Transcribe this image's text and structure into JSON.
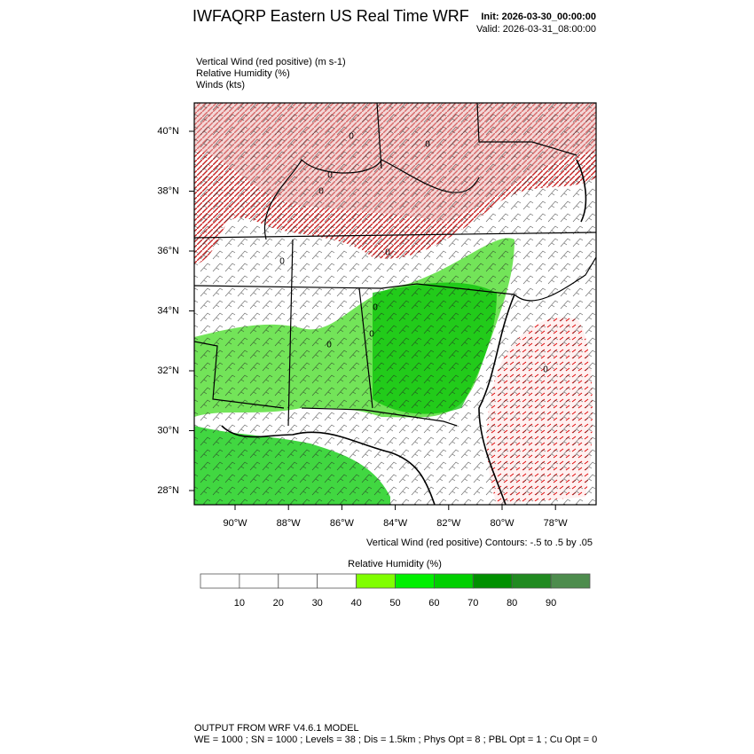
{
  "header": {
    "title": "IWFAQRP Eastern US Real Time WRF",
    "init": "Init: 2026-03-30_00:00:00",
    "valid": "Valid: 2026-03-31_08:00:00"
  },
  "fields": [
    "Vertical Wind (red positive)   (m s-1)",
    "Relative Humidity   (%)",
    "Winds   (kts)"
  ],
  "map": {
    "lon_ticks": [
      "90°W",
      "88°W",
      "86°W",
      "84°W",
      "82°W",
      "80°W",
      "78°W"
    ],
    "lat_ticks": [
      "40°N",
      "38°N",
      "36°N",
      "34°N",
      "32°N",
      "30°N",
      "28°N"
    ],
    "contour_note": "Vertical Wind (red positive) Contours: -.5 to .5 by .05",
    "contour_labels": [
      "0",
      "0",
      "0",
      "0",
      "0",
      "0",
      "0",
      "0",
      "0",
      "0"
    ]
  },
  "colorbar": {
    "title": "Relative Humidity  (%)",
    "levels": [
      10,
      20,
      30,
      40,
      50,
      60,
      70,
      80,
      90
    ],
    "colors": [
      "#ffffff",
      "#ffffff",
      "#ffffff",
      "#ffffff",
      "#80ff00",
      "#00f000",
      "#00d000",
      "#009000",
      "#208a20",
      "#4d8c4d"
    ]
  },
  "footer": {
    "line1": "OUTPUT FROM WRF V4.6.1 MODEL",
    "line2": "WE = 1000 ; SN = 1000 ; Levels = 38 ; Dis = 1.5km ; Phys Opt = 8 ; PBL Opt = 1 ; Cu Opt = 0"
  }
}
